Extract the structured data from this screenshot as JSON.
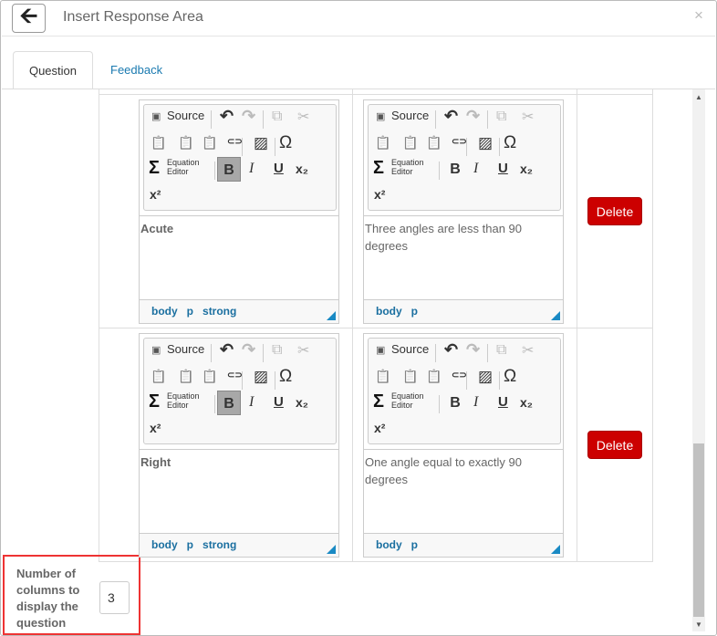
{
  "header": {
    "back_icon": "arrow-left-icon",
    "title": "Insert Response Area",
    "close_label": "×"
  },
  "tabs": [
    {
      "label": "Question",
      "active": true
    },
    {
      "label": "Feedback",
      "active": false
    }
  ],
  "toolbar": {
    "source": "Source",
    "omega": "Ω",
    "sigma": "Σ",
    "equation_editor_1": "Equation",
    "equation_editor_2": "Editor",
    "bold": "B",
    "italic": "I",
    "underline": "U",
    "subscript": "x₂",
    "superscript": "x²"
  },
  "rows": [
    {
      "term": {
        "content": "Acute",
        "bold": true,
        "path": [
          "body",
          "p",
          "strong"
        ]
      },
      "definition": {
        "content": "Three angles are less than 90 degrees",
        "bold": false,
        "path": [
          "body",
          "p"
        ]
      },
      "delete_label": "Delete"
    },
    {
      "term": {
        "content": "Right",
        "bold": true,
        "path": [
          "body",
          "p",
          "strong"
        ]
      },
      "definition": {
        "content": "One angle equal to exactly 90 degrees",
        "bold": false,
        "path": [
          "body",
          "p"
        ]
      },
      "delete_label": "Delete"
    }
  ],
  "columns_setting": {
    "label": "Number of columns to display the question",
    "value": "3"
  },
  "colors": {
    "delete": "#cc0000",
    "link": "#1a7ab0",
    "highlight_border": "#ee3333"
  }
}
